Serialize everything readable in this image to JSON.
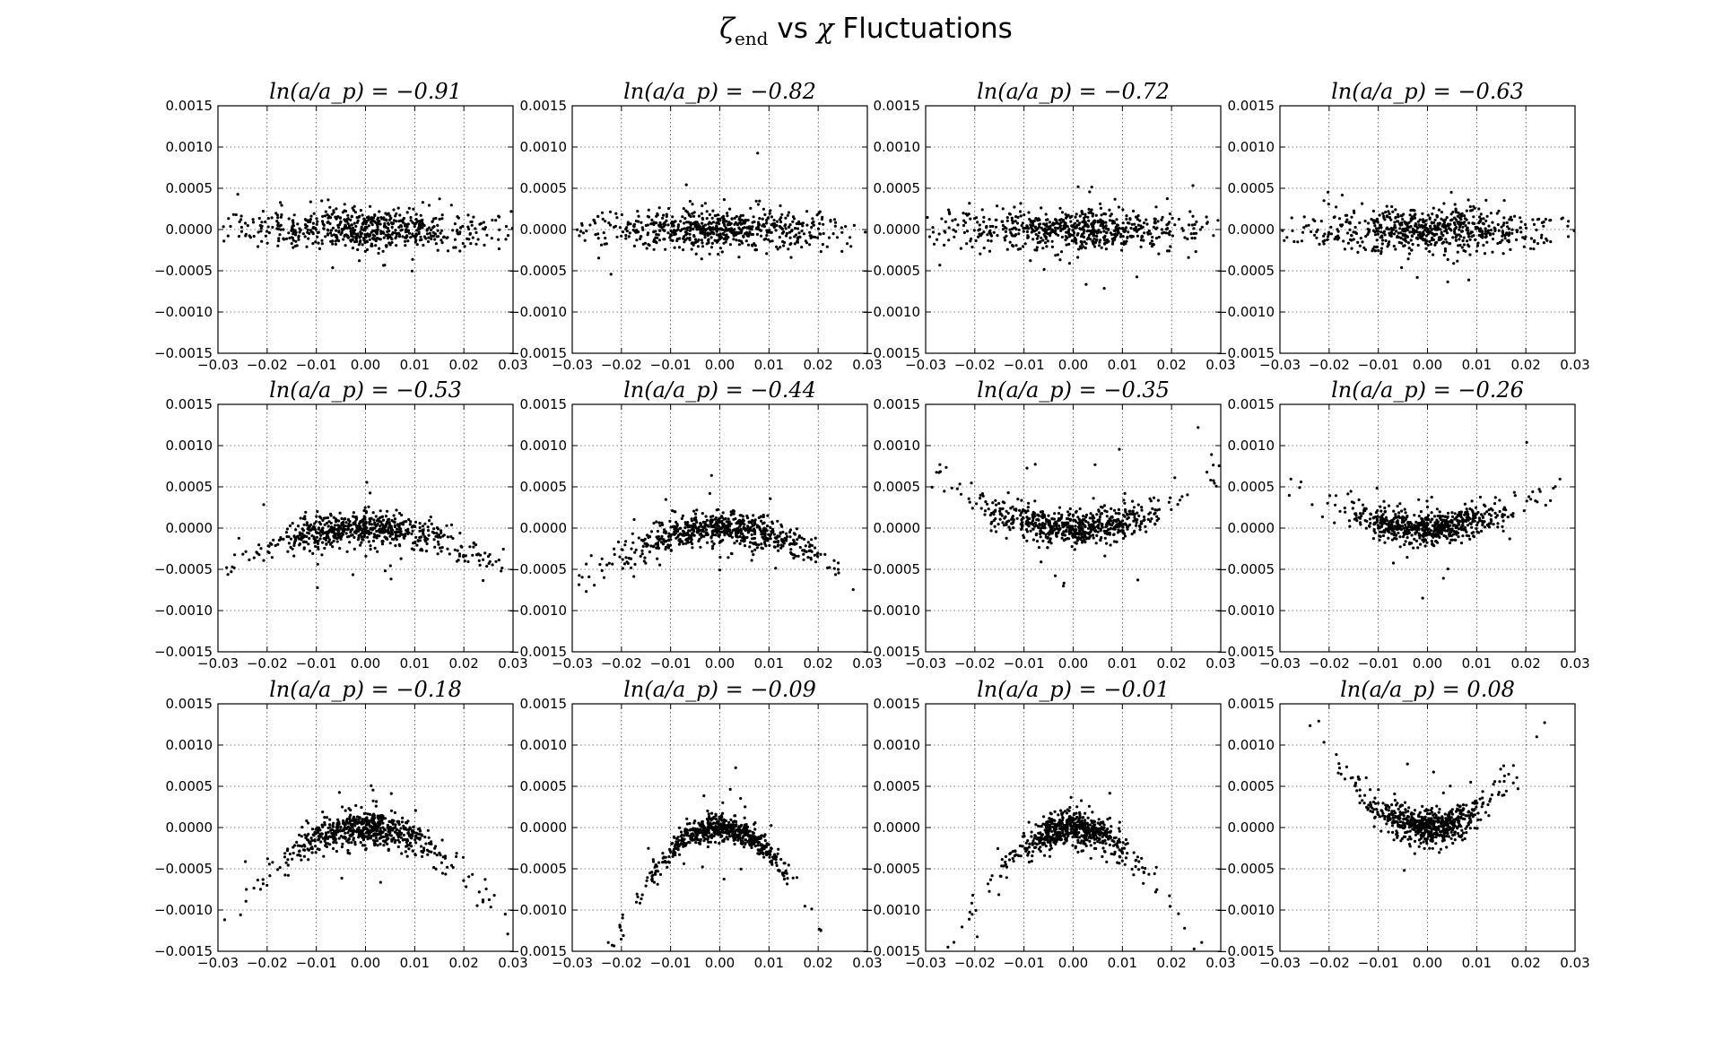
{
  "figure": {
    "title_sym": "ζ",
    "title_sub": "end",
    "title_mid": " vs ",
    "title_chi": "χ",
    "title_rest": " Fluctuations"
  },
  "chart_data": {
    "type": "scatter",
    "grid": true,
    "point_color": "#000000",
    "xlim": [
      -0.03,
      0.03
    ],
    "ylim": [
      -0.0015,
      0.0015
    ],
    "x_ticks": [
      "−0.03",
      "−0.02",
      "−0.01",
      "0.00",
      "0.01",
      "0.02",
      "0.03"
    ],
    "y_ticks": [
      "0.0015",
      "0.0010",
      "0.0005",
      "0.0000",
      "−0.0005",
      "−0.0010",
      "−0.0015"
    ],
    "panels": [
      {
        "title": "ln(a/a_p) = −0.91",
        "ln_a": -0.91,
        "spread_x": 0.013,
        "curvature": 0.0,
        "noise_y": 0.00012,
        "n_points": 650
      },
      {
        "title": "ln(a/a_p) = −0.82",
        "ln_a": -0.82,
        "spread_x": 0.012,
        "curvature": 0.0,
        "noise_y": 0.00012,
        "n_points": 650
      },
      {
        "title": "ln(a/a_p) = −0.72",
        "ln_a": -0.72,
        "spread_x": 0.012,
        "curvature": 0.0,
        "noise_y": 0.00012,
        "n_points": 650
      },
      {
        "title": "ln(a/a_p) = −0.63",
        "ln_a": -0.63,
        "spread_x": 0.011,
        "curvature": 0.0,
        "noise_y": 0.00012,
        "n_points": 650
      },
      {
        "title": "ln(a/a_p) = −0.53",
        "ln_a": -0.53,
        "spread_x": 0.01,
        "curvature": -0.6,
        "noise_y": 0.0001,
        "n_points": 650
      },
      {
        "title": "ln(a/a_p) = −0.44",
        "ln_a": -0.44,
        "spread_x": 0.01,
        "curvature": -0.8,
        "noise_y": 0.0001,
        "n_points": 650
      },
      {
        "title": "ln(a/a_p) = −0.35",
        "ln_a": -0.35,
        "spread_x": 0.009,
        "curvature": 0.8,
        "noise_y": 0.0001,
        "n_points": 650
      },
      {
        "title": "ln(a/a_p) = −0.26",
        "ln_a": -0.26,
        "spread_x": 0.008,
        "curvature": 0.8,
        "noise_y": 0.0001,
        "n_points": 650
      },
      {
        "title": "ln(a/a_p) = −0.18",
        "ln_a": -0.18,
        "spread_x": 0.008,
        "curvature": -1.4,
        "noise_y": 0.0001,
        "n_points": 650
      },
      {
        "title": "ln(a/a_p) = −0.09",
        "ln_a": -0.09,
        "spread_x": 0.007,
        "curvature": -3.0,
        "noise_y": 7e-05,
        "n_points": 650
      },
      {
        "title": "ln(a/a_p) = −0.01",
        "ln_a": -0.01,
        "spread_x": 0.006,
        "curvature": -2.5,
        "noise_y": 0.0001,
        "n_points": 650
      },
      {
        "title": "ln(a/a_p) = 0.08",
        "ln_a": 0.08,
        "spread_x": 0.006,
        "curvature": 2.2,
        "noise_y": 0.0001,
        "n_points": 650
      }
    ]
  }
}
